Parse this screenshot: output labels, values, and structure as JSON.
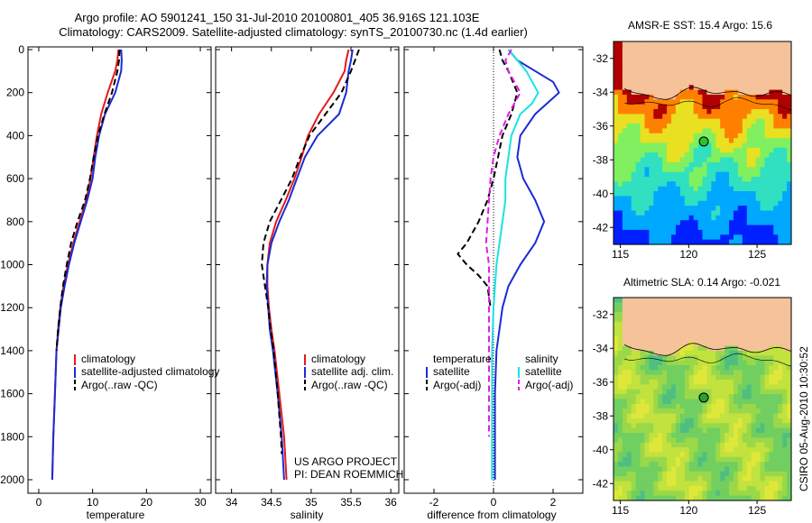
{
  "header": {
    "line1": "Argo profile: AO 5901241_150 31-Jul-2010 20100801_405 36.916S 121.103E",
    "line2": "Climatology: CARS2009. Satellite-adjusted climatology: synTS_20100730.nc (1.4d earlier)"
  },
  "colors": {
    "climatology": "#e41a1c",
    "satellite": "#1a2bd6",
    "argo": "#000000",
    "satellite_diff": "#19e3e3",
    "argo_diff": "#e61ae6",
    "land": "#f5c29a"
  },
  "chart_data": [
    {
      "type": "line",
      "id": "temperature",
      "xlabel": "temperature",
      "xticks": [
        0,
        10,
        20,
        30
      ],
      "xlim": [
        -2,
        32
      ],
      "ylim": [
        0,
        2050
      ],
      "yticks": [
        0,
        200,
        400,
        600,
        800,
        1000,
        1200,
        1400,
        1600,
        1800,
        2000
      ],
      "legend": [
        "climatology",
        "satellite-adjusted climatology",
        "Argo(..raw -QC)"
      ],
      "series": [
        {
          "name": "climatology",
          "color": "#e41a1c",
          "style": "solid",
          "depth": [
            0,
            50,
            100,
            200,
            300,
            400,
            500,
            600,
            700,
            800,
            900,
            1000,
            1100,
            1200,
            1300,
            1400,
            1600,
            1800,
            2000
          ],
          "values": [
            14.8,
            14.6,
            14.2,
            12.8,
            11.6,
            10.8,
            10.2,
            9.6,
            8.8,
            7.6,
            6.4,
            5.4,
            4.6,
            4.0,
            3.6,
            3.3,
            3.0,
            2.7,
            2.5
          ]
        },
        {
          "name": "satellite-adjusted climatology",
          "color": "#1a2bd6",
          "style": "solid",
          "depth": [
            0,
            50,
            100,
            200,
            300,
            400,
            500,
            600,
            700,
            800,
            900,
            1000,
            1100,
            1200,
            1300,
            1400,
            1600,
            1800,
            2000
          ],
          "values": [
            15.3,
            15.4,
            15.3,
            14.2,
            12.3,
            11.2,
            10.5,
            10.0,
            9.0,
            7.8,
            6.6,
            5.6,
            4.8,
            4.1,
            3.7,
            3.3,
            3.0,
            2.7,
            2.5
          ]
        },
        {
          "name": "Argo(..raw -QC)",
          "color": "#000000",
          "style": "dash",
          "depth": [
            0,
            50,
            100,
            200,
            300,
            400,
            500,
            600,
            700,
            800,
            900,
            1000,
            1100,
            1200,
            1300,
            1400
          ],
          "values": [
            15.0,
            14.9,
            14.6,
            13.6,
            12.2,
            11.0,
            10.2,
            9.5,
            8.6,
            7.2,
            6.0,
            5.2,
            4.5,
            4.0,
            3.6,
            3.3
          ]
        }
      ]
    },
    {
      "type": "line",
      "id": "salinity",
      "xlabel": "salinity",
      "xticks": [
        34,
        34.5,
        35,
        35.5,
        36
      ],
      "xlim": [
        33.8,
        36.1
      ],
      "ylim": [
        0,
        2050
      ],
      "legend": [
        "climatology",
        "satellite adj. clim.",
        "Argo(..raw -QC)"
      ],
      "series": [
        {
          "name": "climatology",
          "color": "#e41a1c",
          "style": "solid",
          "depth": [
            0,
            50,
            100,
            200,
            300,
            400,
            500,
            600,
            700,
            800,
            900,
            1000,
            1100,
            1200,
            1300,
            1400,
            1600,
            1800,
            2000
          ],
          "values": [
            35.47,
            35.44,
            35.42,
            35.28,
            35.1,
            34.96,
            34.88,
            34.79,
            34.68,
            34.56,
            34.48,
            34.45,
            34.45,
            34.47,
            34.5,
            34.54,
            34.6,
            34.66,
            34.69
          ]
        },
        {
          "name": "satellite adj. clim.",
          "color": "#1a2bd6",
          "style": "solid",
          "depth": [
            0,
            50,
            100,
            200,
            300,
            400,
            500,
            600,
            700,
            800,
            900,
            1000,
            1100,
            1200,
            1300,
            1400,
            1600,
            1800,
            2000
          ],
          "values": [
            35.52,
            35.5,
            35.47,
            35.44,
            35.35,
            35.08,
            34.92,
            34.82,
            34.72,
            34.6,
            34.5,
            34.45,
            34.44,
            34.46,
            34.48,
            34.52,
            34.58,
            34.63,
            34.66
          ]
        },
        {
          "name": "Argo(..raw -QC)",
          "color": "#000000",
          "style": "dash",
          "depth": [
            0,
            50,
            100,
            200,
            300,
            400,
            500,
            600,
            700,
            800,
            900,
            1000,
            1100,
            1200,
            1300,
            1400,
            1600,
            1800,
            1880
          ],
          "values": [
            35.6,
            35.55,
            35.5,
            35.38,
            35.18,
            34.98,
            34.86,
            34.76,
            34.62,
            34.48,
            34.4,
            34.38,
            34.42,
            34.46,
            34.49,
            34.53,
            34.58,
            34.62,
            34.63
          ]
        }
      ]
    },
    {
      "type": "line",
      "id": "difference",
      "xlabel": "difference from climatology",
      "xticks": [
        -2,
        0,
        2
      ],
      "xlim": [
        -3,
        3
      ],
      "ylim": [
        0,
        2050
      ],
      "legend": [
        "temperature",
        "satellite",
        "Argo(-adj)",
        "salinity",
        "satellite",
        "Argo(-adj)"
      ],
      "series": [
        {
          "name": "satellite",
          "group": "temperature",
          "color": "#1a2bd6",
          "style": "solid",
          "depth": [
            0,
            50,
            100,
            150,
            200,
            250,
            300,
            400,
            500,
            600,
            700,
            800,
            900,
            1000,
            1100,
            1200,
            1300,
            1400,
            1600,
            1800,
            2000
          ],
          "values": [
            0.5,
            0.8,
            1.4,
            2.0,
            2.2,
            1.8,
            1.4,
            0.9,
            0.8,
            1.0,
            1.4,
            1.7,
            1.4,
            0.9,
            0.5,
            0.3,
            0.2,
            0.1,
            0.05,
            0.05,
            0.05
          ]
        },
        {
          "name": "Argo(-adj)",
          "group": "temperature",
          "color": "#000000",
          "style": "dash",
          "depth": [
            0,
            50,
            100,
            200,
            300,
            400,
            500,
            600,
            700,
            800,
            900,
            950,
            1000,
            1050,
            1100,
            1200
          ],
          "values": [
            0.2,
            0.3,
            0.5,
            0.8,
            0.6,
            0.3,
            0.15,
            0.0,
            -0.2,
            -0.5,
            -0.9,
            -1.2,
            -0.9,
            -0.5,
            -0.2,
            -0.1
          ]
        },
        {
          "name": "satellite",
          "group": "salinity",
          "color": "#19e3e3",
          "style": "solid",
          "depth": [
            0,
            50,
            100,
            150,
            200,
            250,
            300,
            400,
            500,
            600,
            700,
            800,
            900,
            1000,
            1200,
            1400,
            1600,
            1800,
            2000
          ],
          "values": [
            0.5,
            0.8,
            1.1,
            1.3,
            1.5,
            1.3,
            0.9,
            0.6,
            0.5,
            0.4,
            0.4,
            0.3,
            0.2,
            0.1,
            0.0,
            -0.05,
            -0.05,
            -0.05,
            -0.05
          ]
        },
        {
          "name": "Argo(-adj)",
          "group": "salinity",
          "color": "#e61ae6",
          "style": "dash",
          "depth": [
            0,
            50,
            100,
            200,
            300,
            400,
            500,
            600,
            700,
            800,
            900,
            1000,
            1600,
            1800
          ],
          "values": [
            0.6,
            0.4,
            0.5,
            0.9,
            0.5,
            0.2,
            0.0,
            -0.1,
            -0.15,
            -0.2,
            -0.25,
            -0.15,
            -0.15,
            -0.15
          ]
        }
      ]
    }
  ],
  "maps": [
    {
      "id": "sst",
      "title": "AMSR-E SST: 15.4 Argo: 15.6",
      "lat_ticks": [
        "-32",
        "-34",
        "-36",
        "-38",
        "-40",
        "-42"
      ],
      "lon_ticks": [
        "115",
        "120",
        "125"
      ]
    },
    {
      "id": "sla",
      "title": "Altimetric SLA: 0.14 Argo: -0.021",
      "lat_ticks": [
        "-32",
        "-34",
        "-36",
        "-38",
        "-40",
        "-42"
      ],
      "lon_ticks": [
        "115",
        "120",
        "125"
      ]
    }
  ],
  "credits": {
    "project": "US ARGO PROJECT",
    "pi": "PI: DEAN ROEMMICH",
    "stamp": "CSIRO 05-Aug-2010 10:30:52"
  }
}
